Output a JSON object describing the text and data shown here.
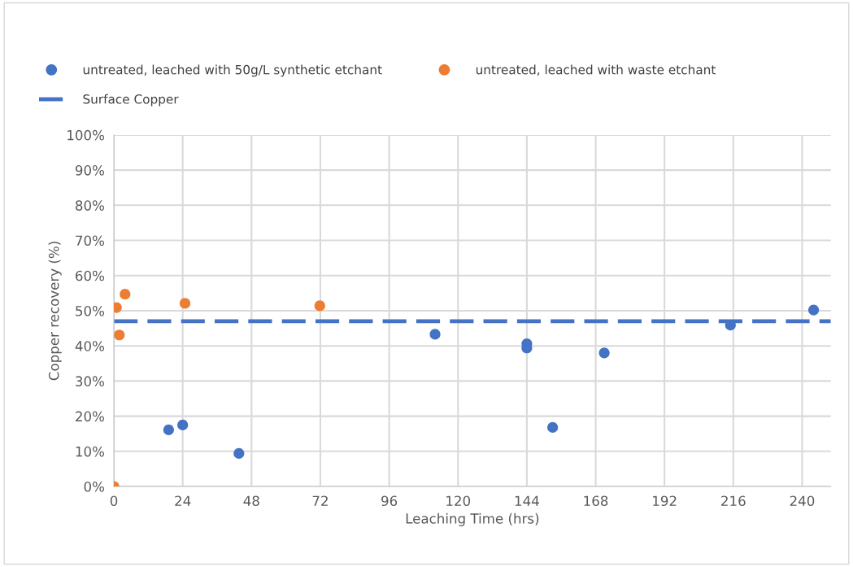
{
  "chart_data": {
    "type": "scatter",
    "xlabel": "Leaching Time (hrs)",
    "ylabel": "Copper recovery (%)",
    "series": [
      {
        "name": "untreated, leached with 50g/L synthetic etchant",
        "color": "#4472c4",
        "x": [
          19.1,
          24,
          43.6,
          112,
          144,
          144,
          153,
          171,
          215,
          244
        ],
        "values": [
          16.1,
          17.5,
          9.4,
          43.3,
          40.6,
          39.4,
          16.8,
          38.0,
          45.9,
          50.2
        ]
      },
      {
        "name": "untreated, leached with waste etchant",
        "color": "#ed7d31",
        "x": [
          0,
          0.9,
          1.9,
          3.9,
          24.8,
          71.8
        ],
        "values": [
          0,
          50.9,
          43.1,
          54.7,
          52.1,
          51.4
        ]
      }
    ],
    "ref_lines": [
      {
        "axis": "y",
        "value": 47,
        "label": "Surface Copper",
        "color": "#4472c4",
        "line_style": "dashed"
      }
    ],
    "xlim": [
      0,
      250
    ],
    "xticks": [
      0,
      24,
      48,
      72,
      96,
      120,
      144,
      168,
      192,
      216,
      240
    ],
    "ylim": [
      0,
      100
    ],
    "yticks": [
      {
        "value": 0,
        "label": "0%"
      },
      {
        "value": 10,
        "label": "10%"
      },
      {
        "value": 20,
        "label": "20%"
      },
      {
        "value": 30,
        "label": "30%"
      },
      {
        "value": 40,
        "label": "40%"
      },
      {
        "value": 50,
        "label": "50%"
      },
      {
        "value": 60,
        "label": "60%"
      },
      {
        "value": 70,
        "label": "70%"
      },
      {
        "value": 80,
        "label": "80%"
      },
      {
        "value": 90,
        "label": "90%"
      },
      {
        "value": 100,
        "label": "100%"
      }
    ],
    "grid": true,
    "legend": "top",
    "marker": "circle"
  }
}
